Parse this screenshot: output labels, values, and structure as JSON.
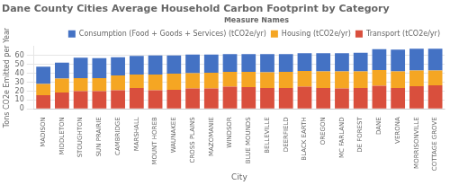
{
  "chart_data": {
    "type": "bar",
    "stacked": true,
    "title": "Dane County Cities Average Household Carbon Footprint by Category",
    "xlabel": "City",
    "ylabel": "Tons CO2e Emitted per Year",
    "legend_title": "Measure Names",
    "legend": "upper right",
    "grid": true,
    "categories": [
      "MADISON",
      "MIDDLETON",
      "STOUGHTON",
      "SUN PRAIRIE",
      "CAMBRIDGE",
      "MARSHALL",
      "MOUNT HOREB",
      "WAUNAKEE",
      "CROSS PLAINS",
      "MAZOMANIE",
      "WINDSOR",
      "BLUE MOUNDS",
      "BELLEVILLE",
      "DEERFIELD",
      "BLACK EARTH",
      "OREGON",
      "MC FARLAND",
      "DE FOREST",
      "DANE",
      "VERONA",
      "MORRISONVILLE",
      "COTTAGE GROVE"
    ],
    "series": [
      {
        "name": "Transport (tCO2e/yr)",
        "color": "#d94f3d",
        "values": [
          15.5,
          18.5,
          20.0,
          20.0,
          21.0,
          23.5,
          21.0,
          21.5,
          23.0,
          23.0,
          25.0,
          24.5,
          23.5,
          23.5,
          25.0,
          23.5,
          23.0,
          23.5,
          26.0,
          23.5,
          25.5,
          26.5
        ]
      },
      {
        "name": "Housing (tCO2e/yr)",
        "color": "#f5a623",
        "values": [
          12.5,
          15.5,
          14.5,
          14.5,
          16.5,
          15.0,
          17.5,
          18.0,
          17.0,
          17.5,
          16.5,
          17.0,
          17.5,
          18.0,
          17.5,
          18.5,
          19.0,
          18.5,
          17.5,
          18.5,
          17.5,
          16.5
        ]
      },
      {
        "name": "Consumption (Food + Goods + Services) (tCO2e/yr)",
        "color": "#4472c4",
        "values": [
          19.5,
          18.0,
          23.0,
          22.5,
          20.5,
          21.0,
          21.5,
          20.5,
          21.0,
          20.5,
          20.0,
          20.0,
          20.5,
          20.0,
          20.0,
          20.5,
          20.5,
          21.0,
          23.5,
          24.5,
          24.5,
          24.5
        ]
      }
    ],
    "ylim": [
      0,
      70
    ],
    "yticks": [
      0,
      10,
      20,
      30,
      40,
      50,
      60
    ]
  }
}
